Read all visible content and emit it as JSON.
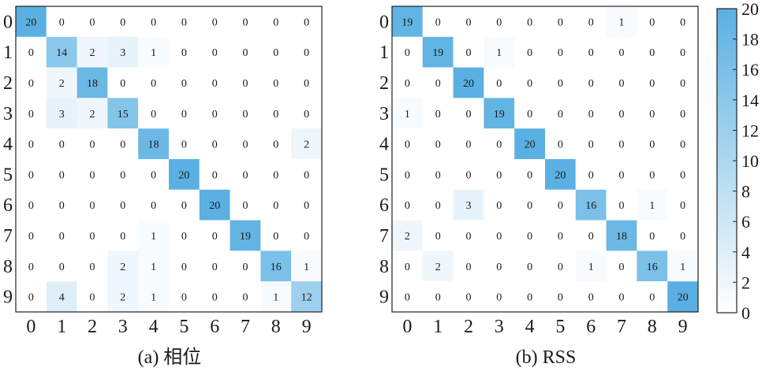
{
  "chart_data": [
    {
      "type": "heatmap",
      "caption": "(a) 相位",
      "row_labels": [
        "0",
        "1",
        "2",
        "3",
        "4",
        "5",
        "6",
        "7",
        "8",
        "9"
      ],
      "col_labels": [
        "0",
        "1",
        "2",
        "3",
        "4",
        "5",
        "6",
        "7",
        "8",
        "9"
      ],
      "matrix": [
        [
          20,
          0,
          0,
          0,
          0,
          0,
          0,
          0,
          0,
          0
        ],
        [
          0,
          14,
          2,
          3,
          1,
          0,
          0,
          0,
          0,
          0
        ],
        [
          0,
          2,
          18,
          0,
          0,
          0,
          0,
          0,
          0,
          0
        ],
        [
          0,
          3,
          2,
          15,
          0,
          0,
          0,
          0,
          0,
          0
        ],
        [
          0,
          0,
          0,
          0,
          18,
          0,
          0,
          0,
          0,
          2
        ],
        [
          0,
          0,
          0,
          0,
          0,
          20,
          0,
          0,
          0,
          0
        ],
        [
          0,
          0,
          0,
          0,
          0,
          0,
          20,
          0,
          0,
          0
        ],
        [
          0,
          0,
          0,
          0,
          1,
          0,
          0,
          19,
          0,
          0
        ],
        [
          0,
          0,
          0,
          2,
          1,
          0,
          0,
          0,
          16,
          1
        ],
        [
          0,
          4,
          0,
          2,
          1,
          0,
          0,
          0,
          1,
          12
        ]
      ]
    },
    {
      "type": "heatmap",
      "caption": "(b) RSS",
      "row_labels": [
        "0",
        "1",
        "2",
        "3",
        "4",
        "5",
        "6",
        "7",
        "8",
        "9"
      ],
      "col_labels": [
        "0",
        "1",
        "2",
        "3",
        "4",
        "5",
        "6",
        "7",
        "8",
        "9"
      ],
      "matrix": [
        [
          19,
          0,
          0,
          0,
          0,
          0,
          0,
          1,
          0,
          0
        ],
        [
          0,
          19,
          0,
          1,
          0,
          0,
          0,
          0,
          0,
          0
        ],
        [
          0,
          0,
          20,
          0,
          0,
          0,
          0,
          0,
          0,
          0
        ],
        [
          1,
          0,
          0,
          19,
          0,
          0,
          0,
          0,
          0,
          0
        ],
        [
          0,
          0,
          0,
          0,
          20,
          0,
          0,
          0,
          0,
          0
        ],
        [
          0,
          0,
          0,
          0,
          0,
          20,
          0,
          0,
          0,
          0
        ],
        [
          0,
          0,
          3,
          0,
          0,
          0,
          16,
          0,
          1,
          0
        ],
        [
          2,
          0,
          0,
          0,
          0,
          0,
          0,
          18,
          0,
          0
        ],
        [
          0,
          2,
          0,
          0,
          0,
          0,
          1,
          0,
          16,
          1
        ],
        [
          0,
          0,
          0,
          0,
          0,
          0,
          0,
          0,
          0,
          20
        ]
      ]
    }
  ],
  "colorbar": {
    "ticks": [
      "0",
      "2",
      "4",
      "6",
      "8",
      "10",
      "12",
      "14",
      "16",
      "18",
      "20"
    ],
    "range": [
      0,
      20
    ],
    "color_low": "#ffffff",
    "color_high": "#5ab0e2"
  }
}
